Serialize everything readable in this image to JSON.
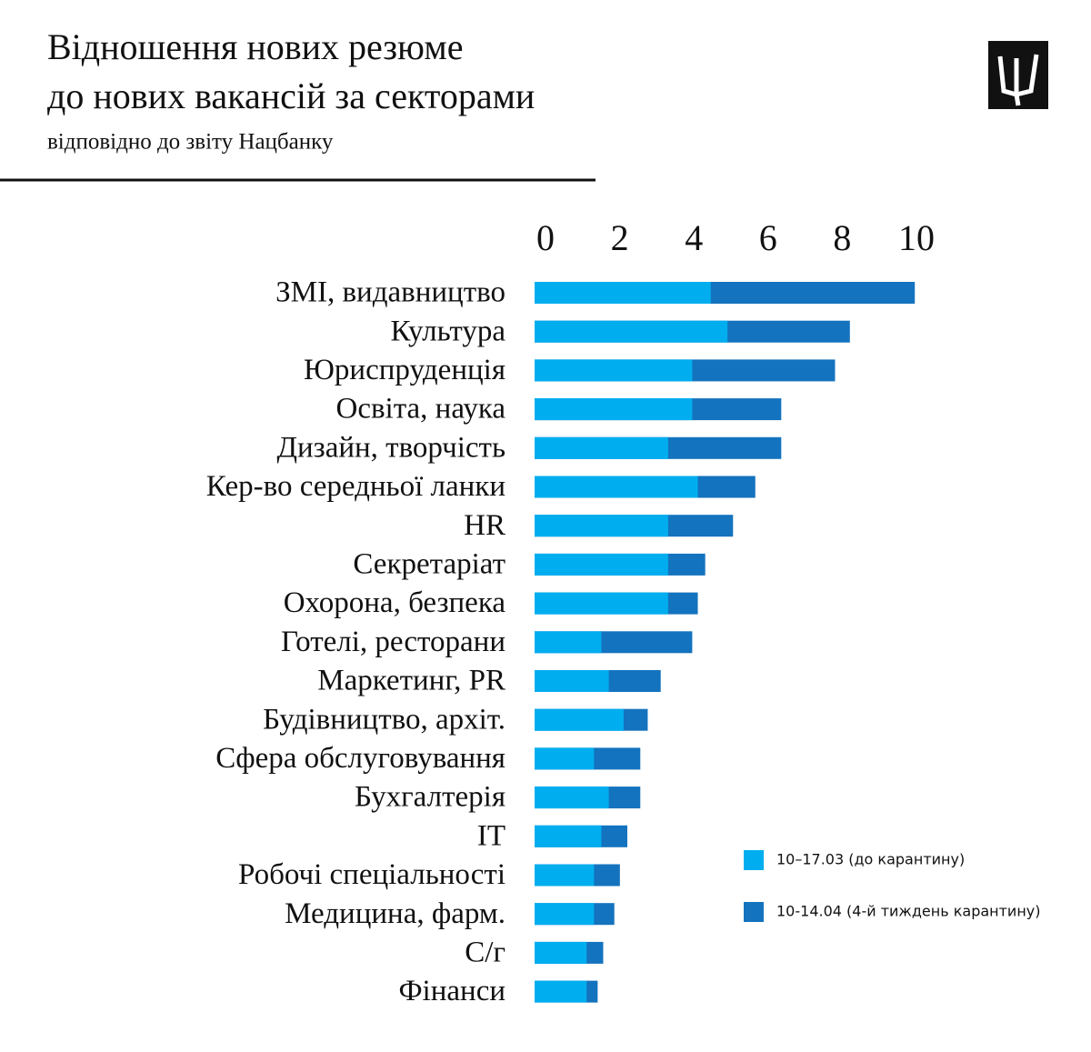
{
  "chart_data": {
    "type": "bar",
    "orientation": "horizontal",
    "overlay": true,
    "title": [
      "Відношення нових резюме",
      "до нових вакансій за секторами"
    ],
    "subtitle": "відповідно до звіту Нацбанку",
    "categories": [
      "ЗМІ, видавництво",
      "Культура",
      "Юриспруденція",
      "Освіта, наука",
      "Дизайн, творчість",
      "Кер-во середньої ланки",
      "HR",
      "Секретаріат",
      "Охорона, безпека",
      "Готелі, ресторани",
      "Маркетинг, PR",
      "Будівництво, архіт.",
      "Сфера обслуговування",
      "Бухгалтерія",
      "IT",
      "Робочі спеціальності",
      "Медицина, фарм.",
      "С/г",
      "Фінанси"
    ],
    "series": [
      {
        "name": "10-14.04 (4-й тиждень карантину)",
        "color": "#1473be",
        "values": [
          10.25,
          8.5,
          8.1,
          6.65,
          6.65,
          5.95,
          5.35,
          4.6,
          4.4,
          4.25,
          3.4,
          3.05,
          2.85,
          2.85,
          2.5,
          2.3,
          2.15,
          1.85,
          1.7
        ]
      },
      {
        "name": "10–17.03 (до карантину)",
        "color": "#00aeef",
        "values": [
          4.75,
          5.2,
          4.25,
          4.25,
          3.6,
          4.4,
          3.6,
          3.6,
          3.6,
          1.8,
          2.0,
          2.4,
          1.6,
          2.0,
          1.8,
          1.6,
          1.6,
          1.4,
          1.4
        ]
      }
    ],
    "xlim": [
      0,
      10
    ],
    "xticks": [
      0,
      2,
      4,
      6,
      8,
      10
    ],
    "xaxis_position": "top",
    "grid": false
  }
}
